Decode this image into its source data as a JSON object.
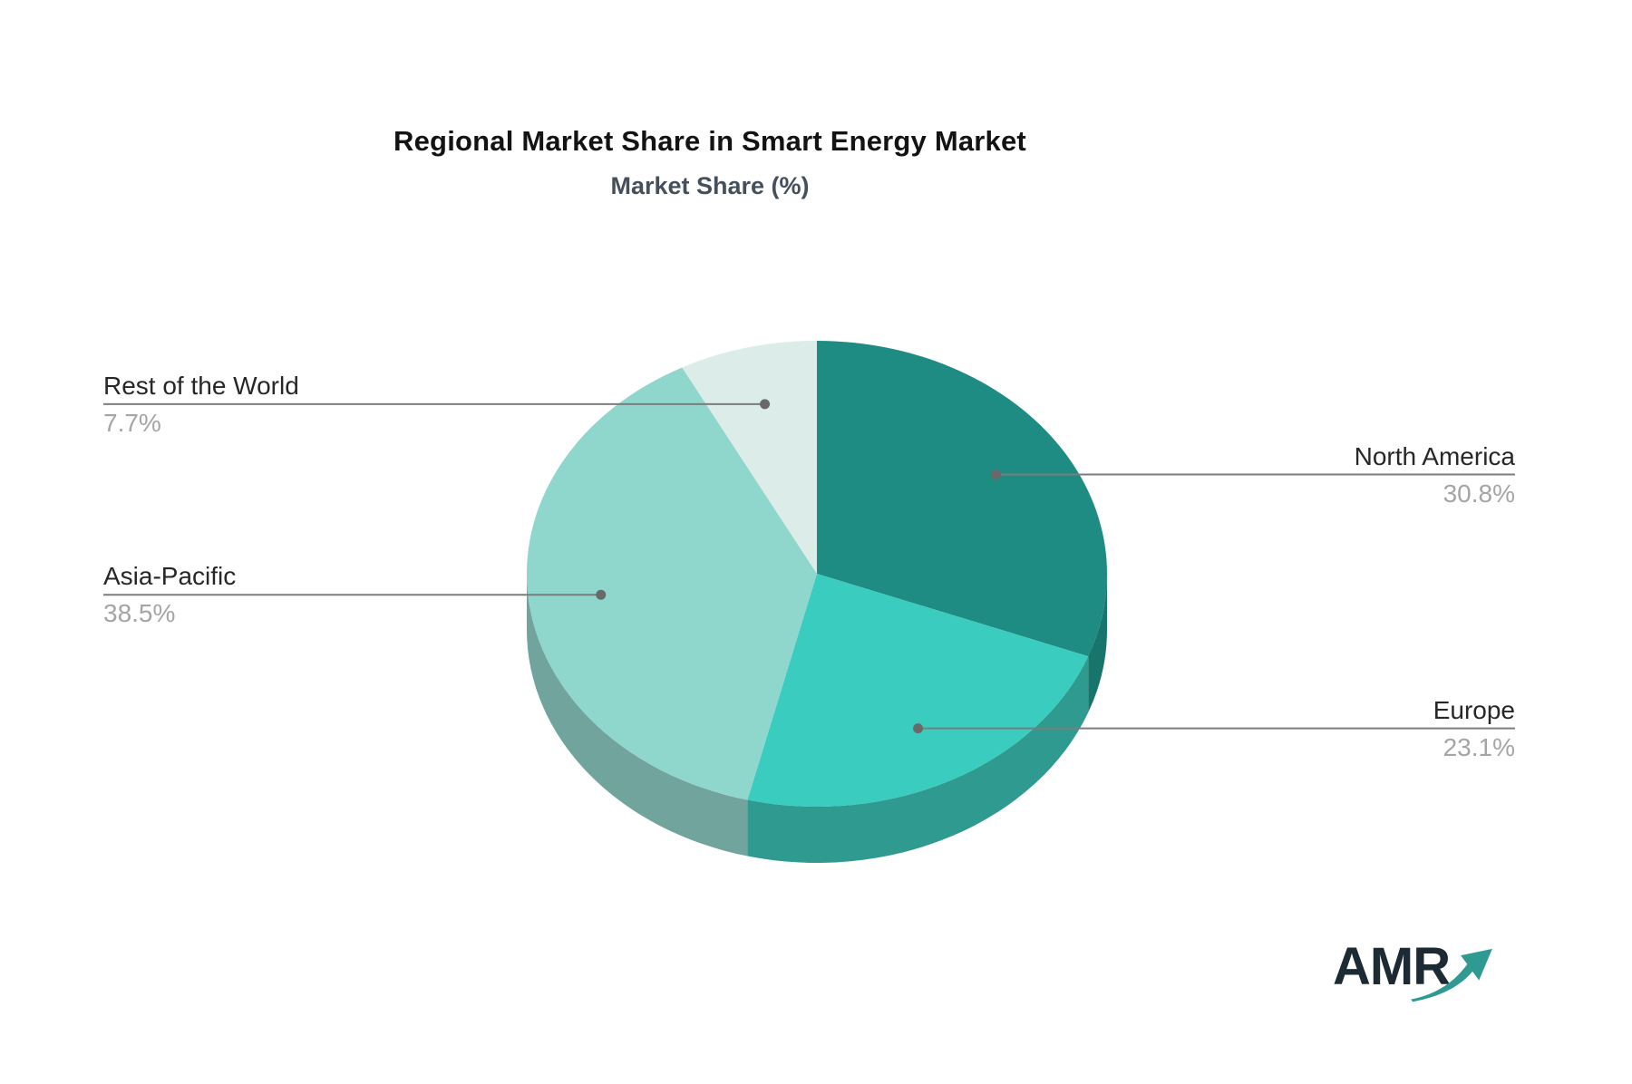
{
  "header": {
    "title": "Regional Market Share in Smart Energy Market",
    "subtitle": "Market Share (%)"
  },
  "chart_data": {
    "type": "pie",
    "title": "Regional Market Share in Smart Energy Market",
    "subtitle": "Market Share (%)",
    "unit": "%",
    "start_angle_deg": 0,
    "direction": "clockwise",
    "effect": "3d",
    "legend_position": "leader-labels",
    "slices": [
      {
        "label": "North America",
        "value": 30.8,
        "display": "30.8%",
        "color": "#1E8C83",
        "side_color": "#17756C",
        "label_side": "right"
      },
      {
        "label": "Europe",
        "value": 23.1,
        "display": "23.1%",
        "color": "#3ACCBF",
        "side_color": "#2F9A90",
        "label_side": "right"
      },
      {
        "label": "Asia-Pacific",
        "value": 38.5,
        "display": "38.5%",
        "color": "#8FD6CD",
        "side_color": "#70A49D",
        "label_side": "left"
      },
      {
        "label": "Rest of the World",
        "value": 7.7,
        "display": "7.7%",
        "color": "#DBECE9",
        "label_side": "left"
      }
    ],
    "label_color": "#272727",
    "pct_color": "#A5A5A5",
    "leader_line_color": "#7C7C7C",
    "leader_dot_color": "#696969"
  },
  "logo": {
    "text": "AMR",
    "text_color": "#1B2A33",
    "arrow_color": "#2F9A92"
  }
}
